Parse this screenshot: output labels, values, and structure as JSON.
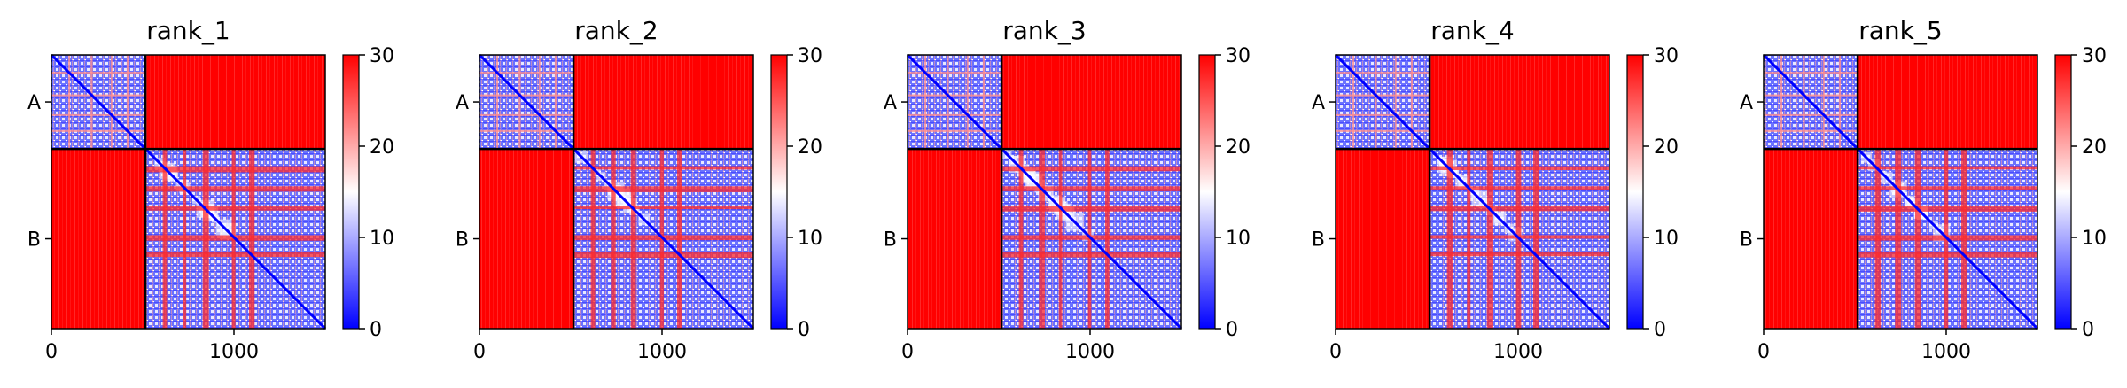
{
  "chart_data": [
    {
      "type": "heatmap",
      "title": "rank_1",
      "row_tick_labels": [
        "A",
        "B"
      ],
      "x_ticks": [
        0,
        1000
      ],
      "x_range": [
        0,
        1500
      ],
      "chain_boundary": 515,
      "colorbar": {
        "min": 0,
        "max": 30,
        "ticks": [
          0,
          10,
          20,
          30
        ],
        "colormap": "bwr"
      }
    },
    {
      "type": "heatmap",
      "title": "rank_2",
      "row_tick_labels": [
        "A",
        "B"
      ],
      "x_ticks": [
        0,
        1000
      ],
      "x_range": [
        0,
        1500
      ],
      "chain_boundary": 515,
      "colorbar": {
        "min": 0,
        "max": 30,
        "ticks": [
          0,
          10,
          20,
          30
        ],
        "colormap": "bwr"
      }
    },
    {
      "type": "heatmap",
      "title": "rank_3",
      "row_tick_labels": [
        "A",
        "B"
      ],
      "x_ticks": [
        0,
        1000
      ],
      "x_range": [
        0,
        1500
      ],
      "chain_boundary": 515,
      "colorbar": {
        "min": 0,
        "max": 30,
        "ticks": [
          0,
          10,
          20,
          30
        ],
        "colormap": "bwr"
      }
    },
    {
      "type": "heatmap",
      "title": "rank_4",
      "row_tick_labels": [
        "A",
        "B"
      ],
      "x_ticks": [
        0,
        1000
      ],
      "x_range": [
        0,
        1500
      ],
      "chain_boundary": 515,
      "colorbar": {
        "min": 0,
        "max": 30,
        "ticks": [
          0,
          10,
          20,
          30
        ],
        "colormap": "bwr"
      }
    },
    {
      "type": "heatmap",
      "title": "rank_5",
      "row_tick_labels": [
        "A",
        "B"
      ],
      "x_ticks": [
        0,
        1000
      ],
      "x_range": [
        0,
        1500
      ],
      "chain_boundary": 515,
      "colorbar": {
        "min": 0,
        "max": 30,
        "ticks": [
          0,
          10,
          20,
          30
        ],
        "colormap": "bwr"
      }
    }
  ],
  "colors": {
    "high": "#ff0000",
    "mid": "#ffffff",
    "low": "#0000ff",
    "boundary": "#000000"
  }
}
